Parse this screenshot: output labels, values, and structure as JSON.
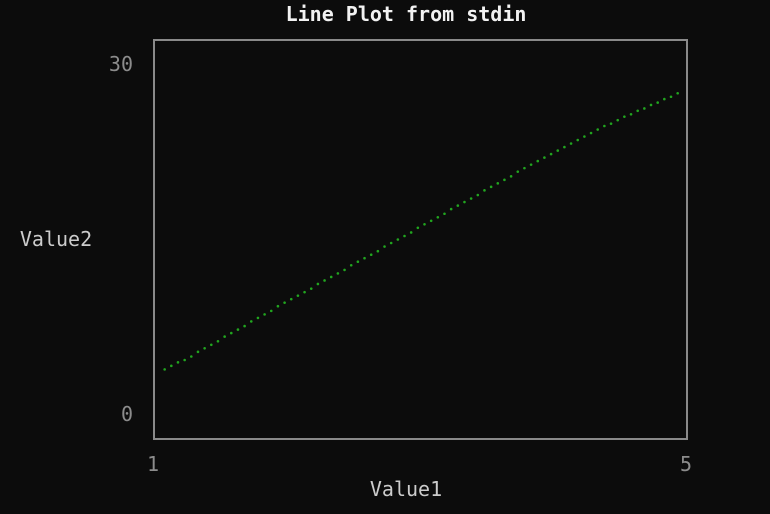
{
  "chart_data": {
    "type": "scatter",
    "title": "Line Plot from stdin",
    "xlabel": "Value1",
    "ylabel": "Value2",
    "xlim": [
      1,
      5
    ],
    "ylim": [
      0,
      30
    ],
    "x_ticks": [
      "1",
      "5"
    ],
    "y_ticks": [
      "30",
      "0"
    ],
    "grid": false,
    "legend": "none",
    "colors": {
      "background": "#0c0c0c",
      "frame": "#8a8a8a",
      "series": "#21a51f"
    },
    "series": [
      {
        "x": [
          1.08,
          1.13,
          1.18,
          1.23,
          1.28,
          1.33,
          1.38,
          1.43,
          1.48,
          1.53,
          1.58,
          1.63,
          1.68,
          1.73,
          1.78,
          1.83,
          1.88,
          1.93,
          1.98,
          2.03,
          2.08,
          2.13,
          2.18,
          2.23,
          2.28,
          2.33,
          2.38,
          2.43,
          2.48,
          2.53,
          2.58,
          2.63,
          2.68,
          2.73,
          2.78,
          2.83,
          2.88,
          2.93,
          2.98,
          3.03,
          3.08,
          3.13,
          3.18,
          3.23,
          3.28,
          3.33,
          3.38,
          3.43,
          3.48,
          3.53,
          3.58,
          3.63,
          3.68,
          3.73,
          3.78,
          3.83,
          3.88,
          3.93,
          3.98,
          4.03,
          4.08,
          4.13,
          4.18,
          4.23,
          4.28,
          4.33,
          4.38,
          4.43,
          4.48,
          4.53,
          4.58,
          4.63,
          4.68,
          4.73,
          4.78,
          4.83,
          4.88,
          4.93
        ],
        "y": [
          3.9,
          4.2,
          4.5,
          4.7,
          5.0,
          5.4,
          5.7,
          6.0,
          6.3,
          6.7,
          7.0,
          7.3,
          7.6,
          8.0,
          8.3,
          8.6,
          8.9,
          9.3,
          9.6,
          9.9,
          10.2,
          10.5,
          10.8,
          11.2,
          11.5,
          11.8,
          12.1,
          12.4,
          12.8,
          13.1,
          13.4,
          13.7,
          14.0,
          14.4,
          14.7,
          15.0,
          15.3,
          15.6,
          16.0,
          16.3,
          16.6,
          16.9,
          17.2,
          17.6,
          17.9,
          18.2,
          18.5,
          18.8,
          19.2,
          19.5,
          19.8,
          20.1,
          20.4,
          20.8,
          21.1,
          21.4,
          21.7,
          22.0,
          22.3,
          22.6,
          22.9,
          23.2,
          23.5,
          23.8,
          24.1,
          24.4,
          24.7,
          24.9,
          25.2,
          25.5,
          25.7,
          26.0,
          26.2,
          26.5,
          26.7,
          27.0,
          27.2,
          27.5
        ]
      }
    ]
  }
}
